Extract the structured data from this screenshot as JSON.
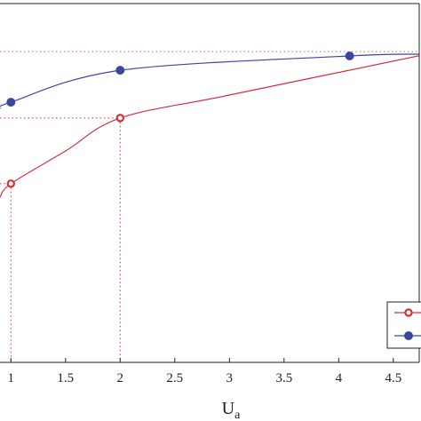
{
  "chart_data": {
    "type": "line",
    "x_label": "U",
    "x_label_sub": "a",
    "xlim": [
      0.9,
      4.76
    ],
    "xticks": [
      1,
      1.5,
      2,
      2.5,
      3,
      3.5,
      4,
      4.5
    ],
    "ylim": [
      0,
      1
    ],
    "reference_line": {
      "y": 0.866,
      "color": "#e06060"
    },
    "legend": "bottom-right",
    "series": [
      {
        "color": "#d62f3a",
        "marker": "open",
        "x": [
          0.9,
          1,
          1.5,
          2,
          3,
          4.76
        ],
        "values": [
          0.46,
          0.498,
          0.589,
          0.681,
          0.745,
          0.856
        ],
        "markers": [
          false,
          true,
          false,
          true,
          false,
          false
        ],
        "guides": true
      },
      {
        "color": "#3a46a0",
        "marker": "filled",
        "x": [
          0.9,
          1,
          2,
          4.1,
          4.76
        ],
        "values": [
          0.708,
          0.725,
          0.814,
          0.854,
          0.859
        ],
        "markers": [
          false,
          true,
          true,
          true,
          false
        ],
        "guides": false
      }
    ]
  }
}
